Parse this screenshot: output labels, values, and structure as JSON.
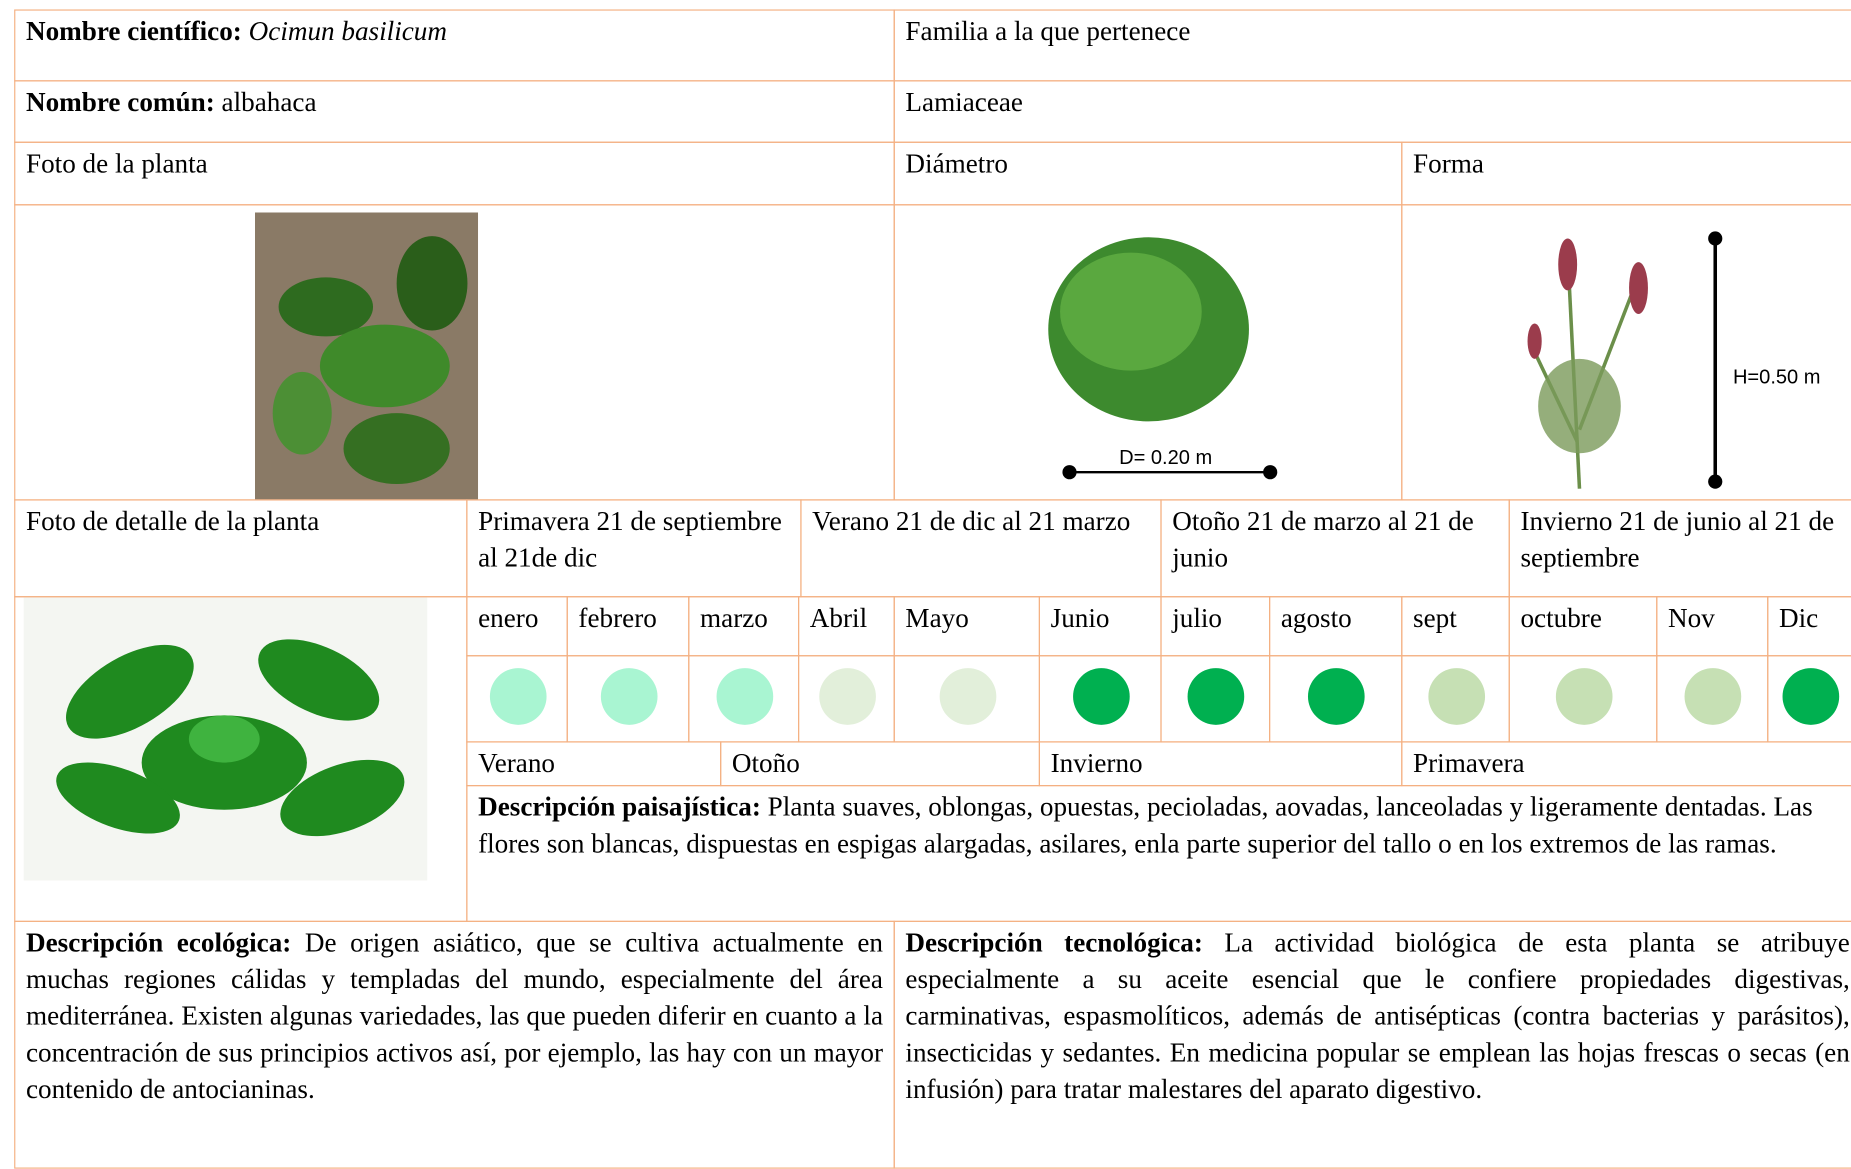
{
  "header": {
    "scientific_name_label": "Nombre científico:",
    "scientific_name": "Ocimun basilicum",
    "family_label": "Familia a la que pertenece",
    "common_name_label": "Nombre común:",
    "common_name": "albahaca",
    "family": "Lamiaceae"
  },
  "photos": {
    "plant_label": "Foto de la planta",
    "diameter_label": "Diámetro",
    "shape_label": "Forma",
    "diameter": "D= 0.20 m",
    "height": "H=0.50 m",
    "detail_label": "Foto de detalle de la planta"
  },
  "seasons": [
    "Primavera 21 de septiembre al 21de dic",
    "Verano 21 de dic al 21 marzo",
    "Otoño 21 de marzo al 21 de junio",
    "Invierno 21 de junio al 21 de septiembre"
  ],
  "months": [
    {
      "name": "enero",
      "color": "#a9f5d2"
    },
    {
      "name": "febrero",
      "color": "#a9f5d2"
    },
    {
      "name": "marzo",
      "color": "#a9f5d2"
    },
    {
      "name": "Abril",
      "color": "#e2efda"
    },
    {
      "name": "Mayo",
      "color": "#e2efda"
    },
    {
      "name": "Junio",
      "color": "#00b050"
    },
    {
      "name": "julio",
      "color": "#00b050"
    },
    {
      "name": "agosto",
      "color": "#00b050"
    },
    {
      "name": "sept",
      "color": "#c6e0b4"
    },
    {
      "name": "octubre",
      "color": "#c6e0b4"
    },
    {
      "name": "Nov",
      "color": "#c6e0b4"
    },
    {
      "name": "Dic",
      "color": "#00b050"
    }
  ],
  "season_bands": [
    "Verano",
    "Otoño",
    "Invierno",
    "Primavera"
  ],
  "descriptions": {
    "landscape": {
      "label": "Descripción paisajística:",
      "text": "Planta suaves, oblongas, opuestas, pecioladas, aovadas, lanceoladas y ligeramente dentadas. Las flores son blancas, dispuestas en espigas alargadas, asilares, enla parte superior del tallo o en los extremos de las ramas."
    },
    "ecological": {
      "label": "Descripción ecológica:",
      "text": "De origen asiático, que se cultiva actualmente en muchas regiones cálidas y templadas del mundo, especialmente del área mediterránea. Existen algunas variedades, las que pueden diferir en cuanto a la concentración de sus principios activos así, por ejemplo, las hay con un mayor contenido de antocianinas."
    },
    "technological": {
      "label": "Descripción tecnológica:",
      "text": "La actividad biológica de esta planta se atribuye especialmente a su aceite esencial que le confiere propiedades digestivas, carminativas, espasmolíticos, además de antisépticas (contra bacterias y parásitos), insecticidas y sedantes. En medicina popular se emplean las hojas frescas o secas (en infusión) para tratar malestares del aparato digestivo."
    }
  }
}
